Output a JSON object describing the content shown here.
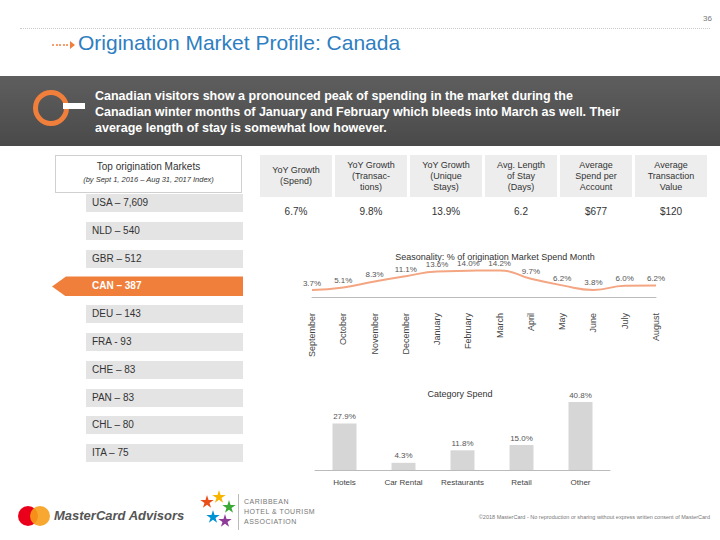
{
  "page_number": "36",
  "title": "Origination Market Profile: Canada",
  "summary": [
    "Canadian visitors show a pronounced peak of spending in the market during the",
    "Canadian winter months of January and February which bleeds into March as well. Their",
    "average length of stay is somewhat low however."
  ],
  "markets": {
    "title": "Top origination Markets",
    "subtitle": "(by Sept 1, 2016 – Aug 31, 2017 Index)",
    "items": [
      {
        "label": "USA – 7,609"
      },
      {
        "label": "NLD – 540"
      },
      {
        "label": "GBR – 512"
      },
      {
        "label": "CAN – 387",
        "highlighted": true
      },
      {
        "label": "DEU – 143"
      },
      {
        "label": "FRA - 93"
      },
      {
        "label": "CHE – 83"
      },
      {
        "label": "PAN – 83"
      },
      {
        "label": "CHL – 80"
      },
      {
        "label": "ITA – 75"
      }
    ]
  },
  "table": {
    "headers": [
      [
        "YoY Growth",
        "(Spend)"
      ],
      [
        "YoY Growth",
        "(Transac-",
        "tions)"
      ],
      [
        "YoY Growth",
        "(Unique",
        "Stays)"
      ],
      [
        "Avg. Length",
        "of Stay",
        "(Days)"
      ],
      [
        "Average",
        "Spend per",
        "Account"
      ],
      [
        "Average",
        "Transaction",
        "Value"
      ]
    ],
    "values": [
      "6.7%",
      "9.8%",
      "13.9%",
      "6.2",
      "$677",
      "$120"
    ]
  },
  "chart_data": [
    {
      "type": "line",
      "title": "Seasonality: % of origination Market Spend Month",
      "categories": [
        "September",
        "October",
        "November",
        "December",
        "January",
        "February",
        "March",
        "April",
        "May",
        "June",
        "July",
        "August"
      ],
      "values": [
        3.7,
        5.1,
        8.3,
        11.1,
        13.6,
        14.0,
        14.2,
        9.7,
        6.2,
        3.8,
        6.0,
        6.2
      ],
      "value_labels": [
        "3.7%",
        "5.1%",
        "8.3%",
        "11.1%",
        "13.6%",
        "14.0%",
        "14.2%",
        "9.7%",
        "6.2%",
        "3.8%",
        "6.0%",
        "6.2%"
      ],
      "color": "#f4a582",
      "ylim": [
        0,
        16
      ],
      "yticks": [
        0,
        16
      ],
      "grid": false,
      "data_labels": true,
      "tick_labels": "x"
    },
    {
      "type": "bar",
      "title": "Category Spend",
      "categories": [
        "Hotels",
        "Car Rental",
        "Restaurants",
        "Retail",
        "Other"
      ],
      "values": [
        27.9,
        4.3,
        11.8,
        15.0,
        40.8
      ],
      "value_labels": [
        "27.9%",
        "4.3%",
        "11.8%",
        "15.0%",
        "40.8%"
      ],
      "color": "#d6d6d6",
      "ylim": [
        0,
        45
      ],
      "yticks": [
        0,
        45
      ],
      "grid": false,
      "data_labels": true,
      "tick_labels": "x"
    }
  ],
  "footer": {
    "logo_text": "MasterCard Advisors",
    "association": [
      "CARIBBEAN",
      "HOTEL & TOURISM",
      "ASSOCIATION"
    ],
    "copyright": "©2018 MasterCard - No reproduction or sharing without express written consent of MasterCard"
  }
}
